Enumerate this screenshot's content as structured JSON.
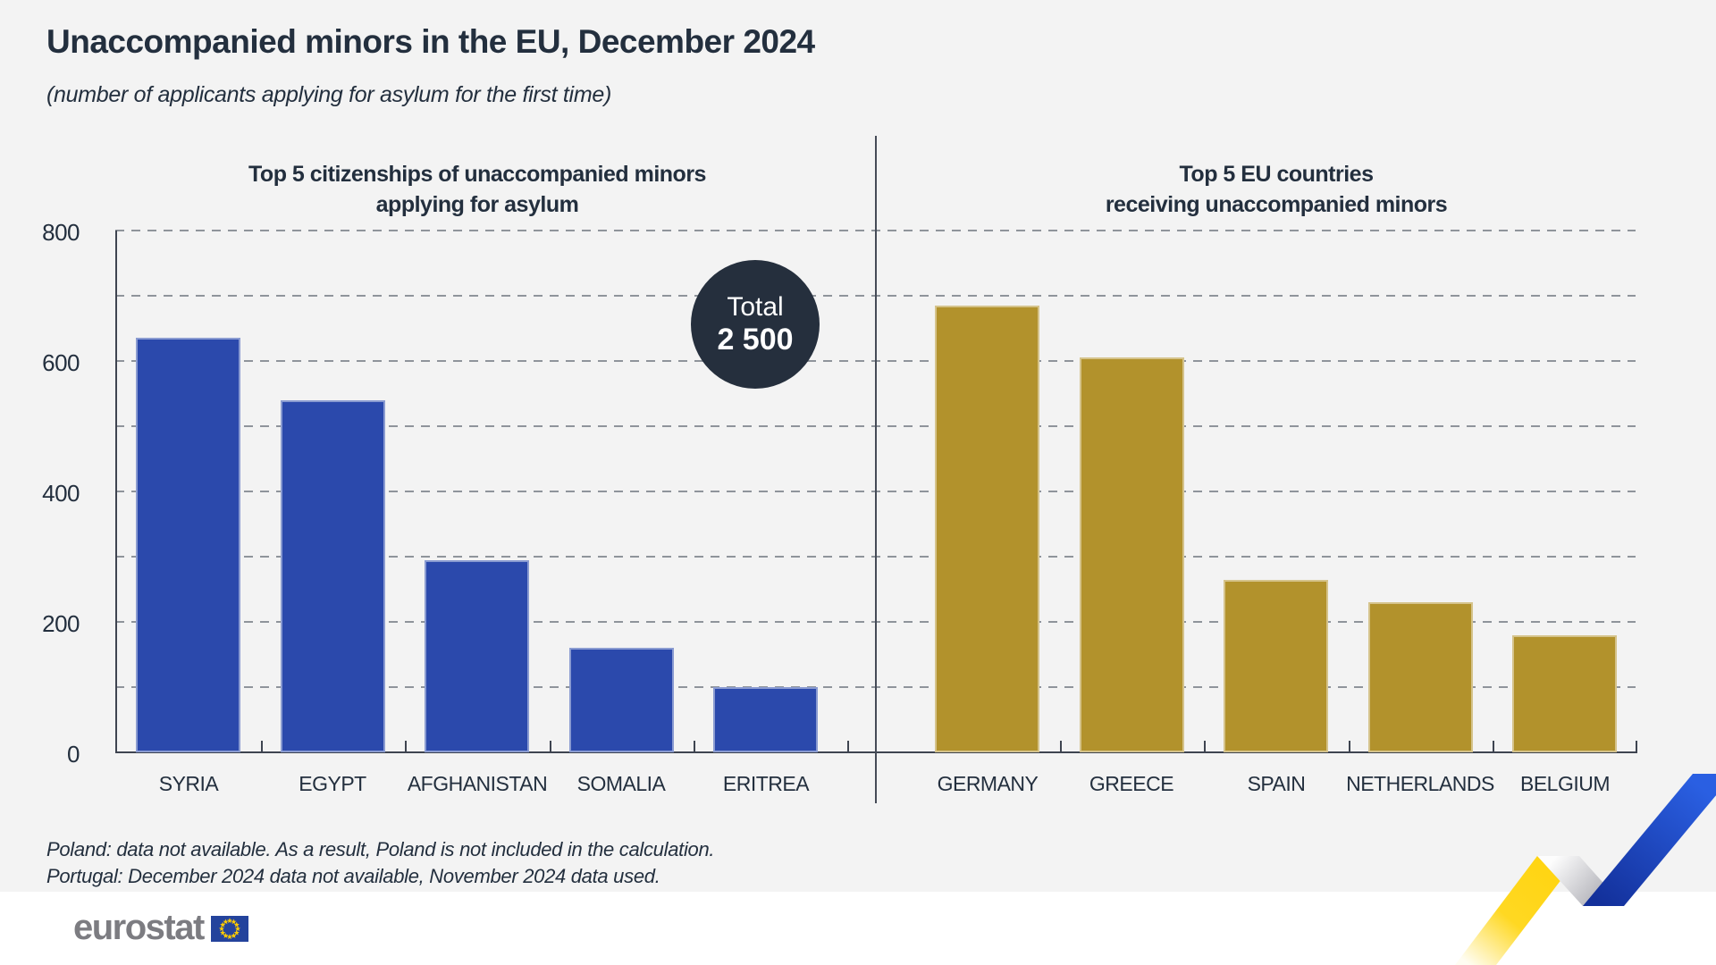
{
  "page": {
    "title": "Unaccompanied minors in the EU, December 2024",
    "subtitle": "(number of applicants applying for asylum for the first time)",
    "footnotes": [
      "Poland: data not available. As a result, Poland is not included in the calculation.",
      "Portugal: December 2024 data not available, November 2024 data used."
    ],
    "logo_text": "eurostat",
    "colors": {
      "background": "#f3f3f3",
      "footer_background": "#ffffff",
      "text": "#232f3e",
      "blue_bar": "#2b49ac",
      "gold_bar": "#b2922c",
      "gridline": "#8f949b",
      "axis": "#3e4450",
      "badge": "#252f3d",
      "logo_gray": "#7c7c81",
      "flag_blue": "#24439c",
      "flag_star_yellow": "#ffcc00",
      "ribbon_yellow": "#ffd515",
      "ribbon_blue": "#2656dd"
    }
  },
  "total_badge": {
    "label": "Total",
    "value": "2 500"
  },
  "y_axis": {
    "ticks": [
      0,
      200,
      400,
      600,
      800
    ],
    "gridlines_every": 100
  },
  "chart_data": [
    {
      "type": "bar",
      "title": "Top 5 citizenships of unaccompanied minors applying for asylum",
      "title_lines": [
        "Top 5 citizenships of unaccompanied minors",
        "applying for asylum"
      ],
      "categories": [
        "SYRIA",
        "EGYPT",
        "AFGHANISTAN",
        "SOMALIA",
        "ERITREA"
      ],
      "values": [
        635,
        540,
        295,
        160,
        100
      ],
      "bar_color": "#2b49ac",
      "xlabel": "",
      "ylabel": "",
      "ylim": [
        0,
        800
      ],
      "grid": true,
      "legend": "none"
    },
    {
      "type": "bar",
      "title": "Top 5 EU countries receiving unaccompanied minors",
      "title_lines": [
        "Top 5 EU countries",
        "receiving unaccompanied minors"
      ],
      "categories": [
        "GERMANY",
        "GREECE",
        "SPAIN",
        "NETHERLANDS",
        "BELGIUM"
      ],
      "values": [
        685,
        605,
        265,
        230,
        180
      ],
      "bar_color": "#b2922c",
      "xlabel": "",
      "ylabel": "",
      "ylim": [
        0,
        800
      ],
      "grid": true,
      "legend": "none"
    }
  ]
}
